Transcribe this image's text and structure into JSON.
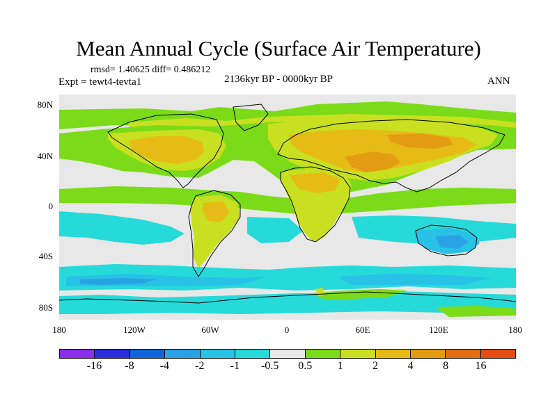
{
  "title": "Mean Annual Cycle (Surface Air Temperature)",
  "stats": "rmsd= 1.40625 diff= 0.486212",
  "experiment": "Expt = tewt4-tevta1",
  "period": "2136kyr BP - 0000kyr BP",
  "season": "ANN",
  "map": {
    "lat_ticks": [
      "80N",
      "40N",
      "0",
      "40S",
      "80S"
    ],
    "lon_ticks": [
      "180",
      "120W",
      "60W",
      "0",
      "60E",
      "120E",
      "180"
    ]
  },
  "colorbar": {
    "colors": [
      "#8c2eea",
      "#2c2ede",
      "#0f65d9",
      "#2aa3e6",
      "#28c2e6",
      "#26dada",
      "#e8e8e8",
      "#7bdb18",
      "#c8e020",
      "#e7bb15",
      "#e49c13",
      "#e56e12",
      "#e64d12"
    ],
    "labels": [
      "-16",
      "-8",
      "-4",
      "-2",
      "-1",
      "-0.5",
      "0.5",
      "1",
      "2",
      "4",
      "8",
      "16"
    ]
  },
  "legend_colors": {
    "neutral": "#e8e8e8",
    "warm_small": "#7bdb18",
    "warm_mid": "#c8e020",
    "warm_high": "#e7bb15",
    "warm_higher": "#e49c13",
    "cool_small": "#26dada",
    "cool_mid": "#28c2e6",
    "cool_high": "#2aa3e6",
    "coast": "#000000"
  }
}
